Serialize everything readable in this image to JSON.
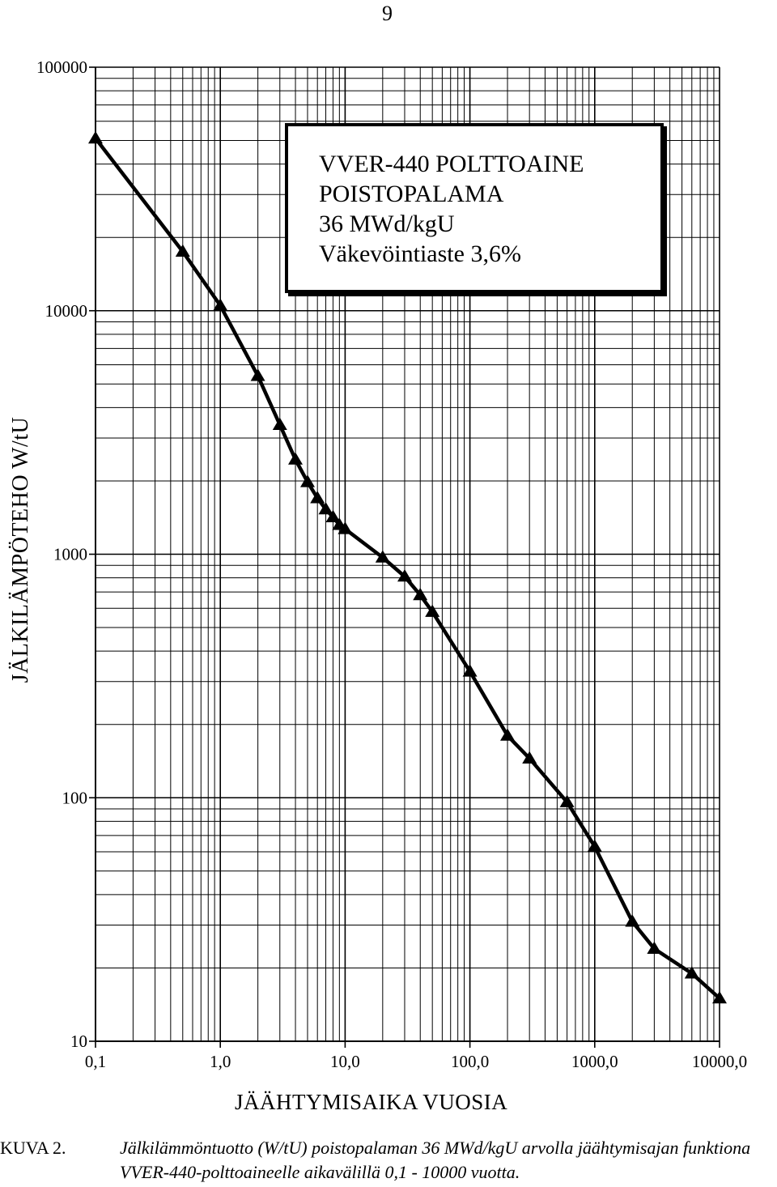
{
  "page": {
    "number": "9"
  },
  "chart_data": {
    "type": "line",
    "title_lines": [
      "VVER-440 POLTTOAINE",
      "POISTOPALAMA",
      "36 MWd/kgU",
      "Väkevöintiaste 3,6%"
    ],
    "xlabel": "JÄÄHTYMISAIKA VUOSIA",
    "ylabel": "JÄLKILÄMPÖTEHO W/tU",
    "x_scale": "log",
    "y_scale": "log",
    "xlim": [
      0.1,
      10000
    ],
    "ylim": [
      10,
      100000
    ],
    "x_tick_labels": [
      "0,1",
      "1,0",
      "10,0",
      "100,0",
      "1000,0",
      "10000,0"
    ],
    "y_tick_labels": [
      "10",
      "100",
      "1000",
      "10000",
      "100000"
    ],
    "grid": true,
    "marker": "triangle",
    "line_color": "#000000",
    "series": [
      {
        "x": [
          0.1,
          0.5,
          1,
          2,
          3,
          4,
          5,
          6,
          7,
          8,
          9,
          10,
          20,
          30,
          40,
          50,
          100,
          200,
          300,
          600,
          1000,
          2000,
          3000,
          6000,
          10000
        ],
        "y": [
          51000,
          17500,
          10500,
          5400,
          3400,
          2450,
          1980,
          1700,
          1530,
          1420,
          1320,
          1270,
          970,
          810,
          680,
          580,
          330,
          180,
          145,
          96,
          63,
          31,
          24,
          19,
          15
        ]
      }
    ]
  },
  "caption": {
    "figure_label": "KUVA 2.",
    "text": "Jälkilämmöntuotto (W/tU) poistopalaman 36 MWd/kgU arvolla jäähtymisajan funktiona VVER-440-polttoaineelle aikavälillä 0,1 - 10000 vuotta."
  }
}
